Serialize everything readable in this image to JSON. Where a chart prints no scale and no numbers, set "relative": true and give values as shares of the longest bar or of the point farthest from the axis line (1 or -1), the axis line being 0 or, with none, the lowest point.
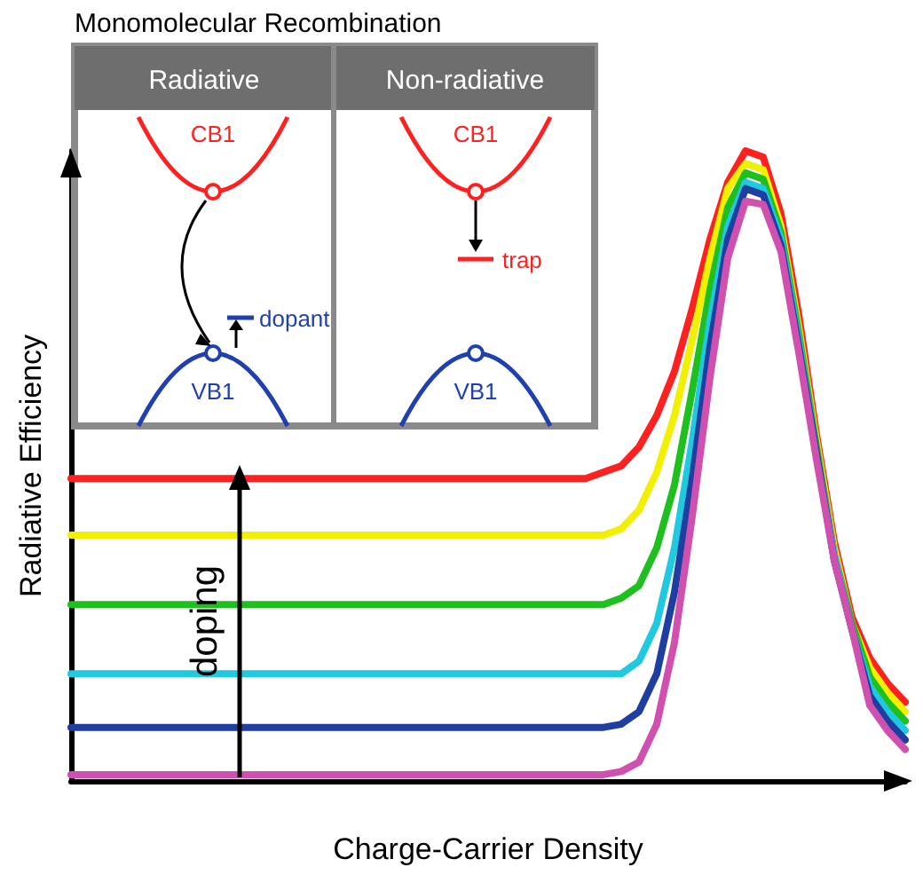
{
  "chart_data": {
    "type": "line",
    "relative": true,
    "xlabel": "Charge-Carrier Density",
    "ylabel": "Radiative Efficiency",
    "marker": "none",
    "annotations": [
      "Monomolecular Recombination",
      "Radiative",
      "Non-radiative",
      "CB1",
      "VB1",
      "dopant",
      "CB1",
      "trap",
      "VB1",
      "doping"
    ],
    "categories": [
      null,
      null,
      null,
      null,
      null,
      null,
      null,
      null,
      null,
      null,
      null,
      null,
      null,
      null,
      null,
      null,
      null,
      null,
      null,
      null,
      null,
      null,
      null,
      null,
      null,
      null,
      null,
      null,
      null,
      null,
      null,
      null,
      null,
      null,
      null,
      null,
      null,
      null,
      null,
      null,
      null,
      null,
      null,
      null,
      null,
      null,
      null,
      null
    ],
    "series": [
      {
        "color": "#ff2020",
        "values": [
          0.48,
          0.48,
          0.48,
          0.48,
          0.48,
          0.48,
          0.48,
          0.48,
          0.48,
          0.48,
          0.48,
          0.48,
          0.48,
          0.48,
          0.48,
          0.48,
          0.48,
          0.48,
          0.48,
          0.48,
          0.48,
          0.48,
          0.48,
          0.48,
          0.48,
          0.48,
          0.48,
          0.48,
          0.48,
          0.48,
          0.49,
          0.5,
          0.53,
          0.58,
          0.65,
          0.75,
          0.86,
          0.95,
          1.0,
          0.99,
          0.9,
          0.74,
          0.55,
          0.38,
          0.26,
          0.195,
          0.155,
          0.125
        ]
      },
      {
        "color": "#f0f000",
        "values": [
          0.39,
          0.39,
          0.39,
          0.39,
          0.39,
          0.39,
          0.39,
          0.39,
          0.39,
          0.39,
          0.39,
          0.39,
          0.39,
          0.39,
          0.39,
          0.39,
          0.39,
          0.39,
          0.39,
          0.39,
          0.39,
          0.39,
          0.39,
          0.39,
          0.39,
          0.39,
          0.39,
          0.39,
          0.39,
          0.39,
          0.39,
          0.4,
          0.43,
          0.49,
          0.58,
          0.7,
          0.83,
          0.94,
          0.98,
          0.97,
          0.88,
          0.72,
          0.54,
          0.37,
          0.25,
          0.18,
          0.14,
          0.11
        ]
      },
      {
        "color": "#1fbf1f",
        "values": [
          0.28,
          0.28,
          0.28,
          0.28,
          0.28,
          0.28,
          0.28,
          0.28,
          0.28,
          0.28,
          0.28,
          0.28,
          0.28,
          0.28,
          0.28,
          0.28,
          0.28,
          0.28,
          0.28,
          0.28,
          0.28,
          0.28,
          0.28,
          0.28,
          0.28,
          0.28,
          0.28,
          0.28,
          0.28,
          0.28,
          0.28,
          0.29,
          0.31,
          0.37,
          0.47,
          0.62,
          0.78,
          0.91,
          0.965,
          0.955,
          0.87,
          0.71,
          0.53,
          0.36,
          0.25,
          0.165,
          0.125,
          0.095
        ]
      },
      {
        "color": "#20c8e0",
        "values": [
          0.17,
          0.17,
          0.17,
          0.17,
          0.17,
          0.17,
          0.17,
          0.17,
          0.17,
          0.17,
          0.17,
          0.17,
          0.17,
          0.17,
          0.17,
          0.17,
          0.17,
          0.17,
          0.17,
          0.17,
          0.17,
          0.17,
          0.17,
          0.17,
          0.17,
          0.17,
          0.17,
          0.17,
          0.17,
          0.17,
          0.17,
          0.17,
          0.19,
          0.25,
          0.37,
          0.54,
          0.73,
          0.88,
          0.95,
          0.94,
          0.86,
          0.7,
          0.52,
          0.36,
          0.24,
          0.15,
          0.11,
          0.08
        ]
      },
      {
        "color": "#1f3fa0",
        "values": [
          0.085,
          0.085,
          0.085,
          0.085,
          0.085,
          0.085,
          0.085,
          0.085,
          0.085,
          0.085,
          0.085,
          0.085,
          0.085,
          0.085,
          0.085,
          0.085,
          0.085,
          0.085,
          0.085,
          0.085,
          0.085,
          0.085,
          0.085,
          0.085,
          0.085,
          0.085,
          0.085,
          0.085,
          0.085,
          0.085,
          0.085,
          0.09,
          0.11,
          0.17,
          0.3,
          0.48,
          0.69,
          0.86,
          0.94,
          0.93,
          0.85,
          0.69,
          0.52,
          0.35,
          0.24,
          0.135,
          0.095,
          0.065
        ]
      },
      {
        "color": "#d050b0",
        "values": [
          0.01,
          0.01,
          0.01,
          0.01,
          0.01,
          0.01,
          0.01,
          0.01,
          0.01,
          0.01,
          0.01,
          0.01,
          0.01,
          0.01,
          0.01,
          0.01,
          0.01,
          0.01,
          0.01,
          0.01,
          0.01,
          0.01,
          0.01,
          0.01,
          0.01,
          0.01,
          0.01,
          0.01,
          0.01,
          0.01,
          0.01,
          0.015,
          0.03,
          0.09,
          0.22,
          0.42,
          0.64,
          0.83,
          0.92,
          0.915,
          0.84,
          0.68,
          0.51,
          0.35,
          0.24,
          0.12,
          0.08,
          0.05
        ]
      }
    ]
  }
}
